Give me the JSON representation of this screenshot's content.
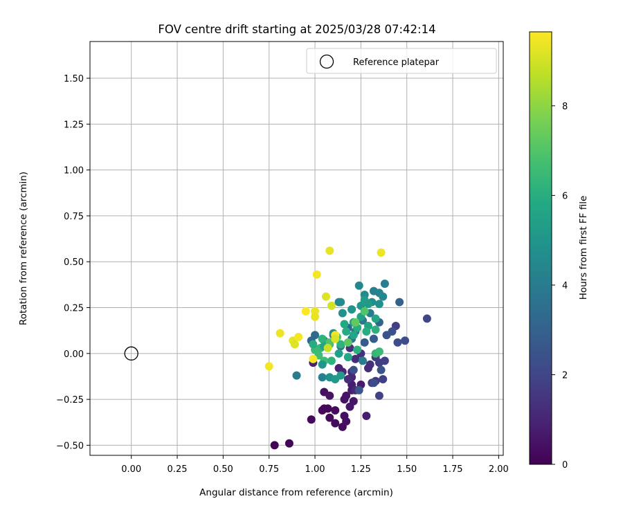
{
  "chart_data": {
    "type": "scatter",
    "title": "FOV centre drift starting at 2025/03/28 07:42:14",
    "xlabel": "Angular distance from reference (arcmin)",
    "ylabel": "Rotation from reference (arcmin)",
    "xlim": [
      -0.225,
      2.025
    ],
    "ylim": [
      -0.555,
      1.7
    ],
    "xticks": [
      0.0,
      0.25,
      0.5,
      0.75,
      1.0,
      1.25,
      1.5,
      1.75,
      2.0
    ],
    "xtick_labels": [
      "0.00",
      "0.25",
      "0.50",
      "0.75",
      "1.00",
      "1.25",
      "1.50",
      "1.75",
      "2.00"
    ],
    "yticks": [
      -0.5,
      -0.25,
      0.0,
      0.25,
      0.5,
      0.75,
      1.0,
      1.25,
      1.5
    ],
    "ytick_labels": [
      "−0.50",
      "−0.25",
      "0.00",
      "0.25",
      "0.50",
      "0.75",
      "1.00",
      "1.25",
      "1.50"
    ],
    "grid": true,
    "legend": {
      "placement": "top-right",
      "entries": [
        "Reference platepar"
      ]
    },
    "reference_point": {
      "x": 0.0,
      "y": 0.0
    },
    "colorbar": {
      "label": "Hours from first FF file",
      "colormap": "viridis",
      "range": [
        0,
        9.65
      ],
      "ticks": [
        0,
        2,
        4,
        6,
        8
      ],
      "tick_labels": [
        "0",
        "2",
        "4",
        "6",
        "8"
      ]
    },
    "points": [
      {
        "x": 0.78,
        "y": -0.5,
        "c": 0.1
      },
      {
        "x": 0.86,
        "y": -0.49,
        "c": 0.1
      },
      {
        "x": 0.98,
        "y": -0.36,
        "c": 0.2
      },
      {
        "x": 1.04,
        "y": -0.31,
        "c": 0.2
      },
      {
        "x": 1.05,
        "y": -0.3,
        "c": 0.2
      },
      {
        "x": 1.07,
        "y": -0.3,
        "c": 0.2
      },
      {
        "x": 1.08,
        "y": -0.35,
        "c": 0.3
      },
      {
        "x": 1.11,
        "y": -0.38,
        "c": 0.3
      },
      {
        "x": 1.11,
        "y": -0.31,
        "c": 0.3
      },
      {
        "x": 1.15,
        "y": -0.4,
        "c": 0.3
      },
      {
        "x": 1.16,
        "y": -0.34,
        "c": 0.4
      },
      {
        "x": 1.17,
        "y": -0.37,
        "c": 0.4
      },
      {
        "x": 1.16,
        "y": -0.25,
        "c": 0.5
      },
      {
        "x": 1.17,
        "y": -0.23,
        "c": 0.5
      },
      {
        "x": 1.19,
        "y": -0.29,
        "c": 0.6
      },
      {
        "x": 1.21,
        "y": -0.26,
        "c": 0.6
      },
      {
        "x": 1.2,
        "y": -0.2,
        "c": 0.7
      },
      {
        "x": 1.25,
        "y": -0.17,
        "c": 0.7
      },
      {
        "x": 1.28,
        "y": -0.34,
        "c": 0.8
      },
      {
        "x": 1.2,
        "y": -0.17,
        "c": 0.8
      },
      {
        "x": 1.05,
        "y": -0.21,
        "c": 0.4
      },
      {
        "x": 1.08,
        "y": -0.23,
        "c": 0.5
      },
      {
        "x": 0.99,
        "y": -0.05,
        "c": 0.9
      },
      {
        "x": 1.13,
        "y": -0.08,
        "c": 0.9
      },
      {
        "x": 1.15,
        "y": -0.1,
        "c": 1.0
      },
      {
        "x": 1.2,
        "y": -0.1,
        "c": 1.0
      },
      {
        "x": 1.22,
        "y": -0.2,
        "c": 1.1
      },
      {
        "x": 1.2,
        "y": -0.13,
        "c": 1.1
      },
      {
        "x": 1.18,
        "y": -0.14,
        "c": 1.2
      },
      {
        "x": 1.22,
        "y": -0.03,
        "c": 1.2
      },
      {
        "x": 1.19,
        "y": 0.03,
        "c": 1.3
      },
      {
        "x": 1.25,
        "y": 0.0,
        "c": 1.3
      },
      {
        "x": 1.3,
        "y": -0.06,
        "c": 1.4
      },
      {
        "x": 1.33,
        "y": -0.02,
        "c": 1.5
      },
      {
        "x": 1.31,
        "y": -0.16,
        "c": 1.6
      },
      {
        "x": 1.33,
        "y": -0.15,
        "c": 1.6
      },
      {
        "x": 1.35,
        "y": -0.05,
        "c": 1.7
      },
      {
        "x": 1.37,
        "y": -0.14,
        "c": 1.8
      },
      {
        "x": 1.38,
        "y": -0.04,
        "c": 1.8
      },
      {
        "x": 1.35,
        "y": -0.23,
        "c": 1.9
      },
      {
        "x": 1.44,
        "y": 0.15,
        "c": 1.8
      },
      {
        "x": 1.61,
        "y": 0.19,
        "c": 2.0
      },
      {
        "x": 1.45,
        "y": 0.06,
        "c": 2.2
      },
      {
        "x": 1.49,
        "y": 0.07,
        "c": 2.3
      },
      {
        "x": 1.42,
        "y": 0.12,
        "c": 2.4
      },
      {
        "x": 1.39,
        "y": 0.1,
        "c": 2.5
      },
      {
        "x": 1.36,
        "y": -0.09,
        "c": 2.5
      },
      {
        "x": 1.24,
        "y": -0.2,
        "c": 2.6
      },
      {
        "x": 1.21,
        "y": -0.09,
        "c": 2.4
      },
      {
        "x": 1.27,
        "y": 0.06,
        "c": 2.7
      },
      {
        "x": 1.32,
        "y": 0.08,
        "c": 2.8
      },
      {
        "x": 1.46,
        "y": 0.28,
        "c": 3.0
      },
      {
        "x": 1.35,
        "y": 0.17,
        "c": 3.1
      },
      {
        "x": 1.18,
        "y": 0.14,
        "c": 3.2
      },
      {
        "x": 0.98,
        "y": 0.07,
        "c": 3.2
      },
      {
        "x": 1.0,
        "y": 0.1,
        "c": 3.3
      },
      {
        "x": 1.05,
        "y": 0.07,
        "c": 3.4
      },
      {
        "x": 1.1,
        "y": 0.1,
        "c": 3.5
      },
      {
        "x": 1.14,
        "y": 0.04,
        "c": 3.6
      },
      {
        "x": 1.2,
        "y": 0.08,
        "c": 3.7
      },
      {
        "x": 1.22,
        "y": 0.12,
        "c": 3.8
      },
      {
        "x": 1.26,
        "y": 0.18,
        "c": 3.9
      },
      {
        "x": 1.3,
        "y": 0.22,
        "c": 4.0
      },
      {
        "x": 1.38,
        "y": 0.38,
        "c": 4.1
      },
      {
        "x": 1.32,
        "y": 0.34,
        "c": 4.2
      },
      {
        "x": 1.35,
        "y": 0.33,
        "c": 4.3
      },
      {
        "x": 1.37,
        "y": 0.31,
        "c": 4.4
      },
      {
        "x": 1.24,
        "y": 0.37,
        "c": 4.5
      },
      {
        "x": 1.27,
        "y": 0.32,
        "c": 4.6
      },
      {
        "x": 1.31,
        "y": 0.28,
        "c": 4.7
      },
      {
        "x": 1.35,
        "y": 0.27,
        "c": 4.8
      },
      {
        "x": 1.15,
        "y": 0.22,
        "c": 4.9
      },
      {
        "x": 1.2,
        "y": 0.24,
        "c": 5.0
      },
      {
        "x": 1.25,
        "y": 0.26,
        "c": 5.1
      },
      {
        "x": 1.29,
        "y": 0.27,
        "c": 5.2
      },
      {
        "x": 1.13,
        "y": 0.28,
        "c": 4.4
      },
      {
        "x": 1.14,
        "y": 0.28,
        "c": 4.6
      },
      {
        "x": 1.27,
        "y": 0.29,
        "c": 5.3
      },
      {
        "x": 1.21,
        "y": 0.17,
        "c": 5.4
      },
      {
        "x": 1.25,
        "y": 0.2,
        "c": 5.5
      },
      {
        "x": 1.29,
        "y": 0.15,
        "c": 5.6
      },
      {
        "x": 1.33,
        "y": 0.19,
        "c": 5.7
      },
      {
        "x": 1.16,
        "y": 0.16,
        "c": 5.8
      },
      {
        "x": 1.17,
        "y": 0.12,
        "c": 5.9
      },
      {
        "x": 1.23,
        "y": 0.14,
        "c": 6.0
      },
      {
        "x": 1.28,
        "y": 0.12,
        "c": 6.0
      },
      {
        "x": 1.33,
        "y": 0.13,
        "c": 6.1
      },
      {
        "x": 1.14,
        "y": 0.05,
        "c": 6.2
      },
      {
        "x": 1.08,
        "y": 0.05,
        "c": 6.3
      },
      {
        "x": 1.03,
        "y": 0.03,
        "c": 6.4
      },
      {
        "x": 1.0,
        "y": 0.02,
        "c": 6.5
      },
      {
        "x": 1.02,
        "y": -0.01,
        "c": 6.6
      },
      {
        "x": 1.05,
        "y": -0.04,
        "c": 6.6
      },
      {
        "x": 1.09,
        "y": -0.04,
        "c": 6.2
      },
      {
        "x": 1.04,
        "y": -0.06,
        "c": 5.0
      },
      {
        "x": 1.13,
        "y": 0.0,
        "c": 5.4
      },
      {
        "x": 1.18,
        "y": -0.02,
        "c": 5.8
      },
      {
        "x": 1.23,
        "y": 0.02,
        "c": 6.1
      },
      {
        "x": 1.33,
        "y": 0.0,
        "c": 6.3
      },
      {
        "x": 1.35,
        "y": 0.01,
        "c": 6.5
      },
      {
        "x": 0.9,
        "y": -0.12,
        "c": 4.0
      },
      {
        "x": 1.04,
        "y": -0.13,
        "c": 4.2
      },
      {
        "x": 1.08,
        "y": -0.13,
        "c": 4.8
      },
      {
        "x": 1.11,
        "y": -0.14,
        "c": 5.1
      },
      {
        "x": 1.14,
        "y": -0.12,
        "c": 5.3
      },
      {
        "x": 1.05,
        "y": 0.04,
        "c": 5.6
      },
      {
        "x": 0.99,
        "y": 0.05,
        "c": 5.9
      },
      {
        "x": 1.04,
        "y": 0.08,
        "c": 6.2
      },
      {
        "x": 1.12,
        "y": 0.09,
        "c": 6.7
      },
      {
        "x": 1.08,
        "y": 0.06,
        "c": 7.0
      },
      {
        "x": 1.18,
        "y": 0.06,
        "c": 7.2
      },
      {
        "x": 1.22,
        "y": 0.17,
        "c": 7.3
      },
      {
        "x": 1.27,
        "y": 0.23,
        "c": 7.0
      },
      {
        "x": 1.21,
        "y": 0.1,
        "c": 5.7
      },
      {
        "x": 1.1,
        "y": 0.11,
        "c": 4.6
      },
      {
        "x": 1.26,
        "y": -0.04,
        "c": 4.0
      },
      {
        "x": 1.29,
        "y": -0.08,
        "c": 1.2
      },
      {
        "x": 1.32,
        "y": -0.16,
        "c": 2.3
      },
      {
        "x": 0.75,
        "y": -0.07,
        "c": 9.5
      },
      {
        "x": 0.81,
        "y": 0.11,
        "c": 9.4
      },
      {
        "x": 0.88,
        "y": 0.07,
        "c": 9.3
      },
      {
        "x": 0.89,
        "y": 0.05,
        "c": 9.2
      },
      {
        "x": 0.91,
        "y": 0.09,
        "c": 9.5
      },
      {
        "x": 0.95,
        "y": 0.23,
        "c": 9.6
      },
      {
        "x": 1.0,
        "y": 0.23,
        "c": 9.4
      },
      {
        "x": 1.0,
        "y": 0.2,
        "c": 9.3
      },
      {
        "x": 1.01,
        "y": 0.43,
        "c": 9.5
      },
      {
        "x": 1.06,
        "y": 0.31,
        "c": 9.2
      },
      {
        "x": 1.09,
        "y": 0.26,
        "c": 9.0
      },
      {
        "x": 1.08,
        "y": 0.56,
        "c": 9.3
      },
      {
        "x": 1.36,
        "y": 0.55,
        "c": 9.4
      },
      {
        "x": 1.11,
        "y": 0.1,
        "c": 9.5
      },
      {
        "x": 1.11,
        "y": 0.08,
        "c": 9.1
      },
      {
        "x": 1.07,
        "y": 0.03,
        "c": 8.8
      },
      {
        "x": 0.99,
        "y": -0.03,
        "c": 9.6
      }
    ]
  }
}
